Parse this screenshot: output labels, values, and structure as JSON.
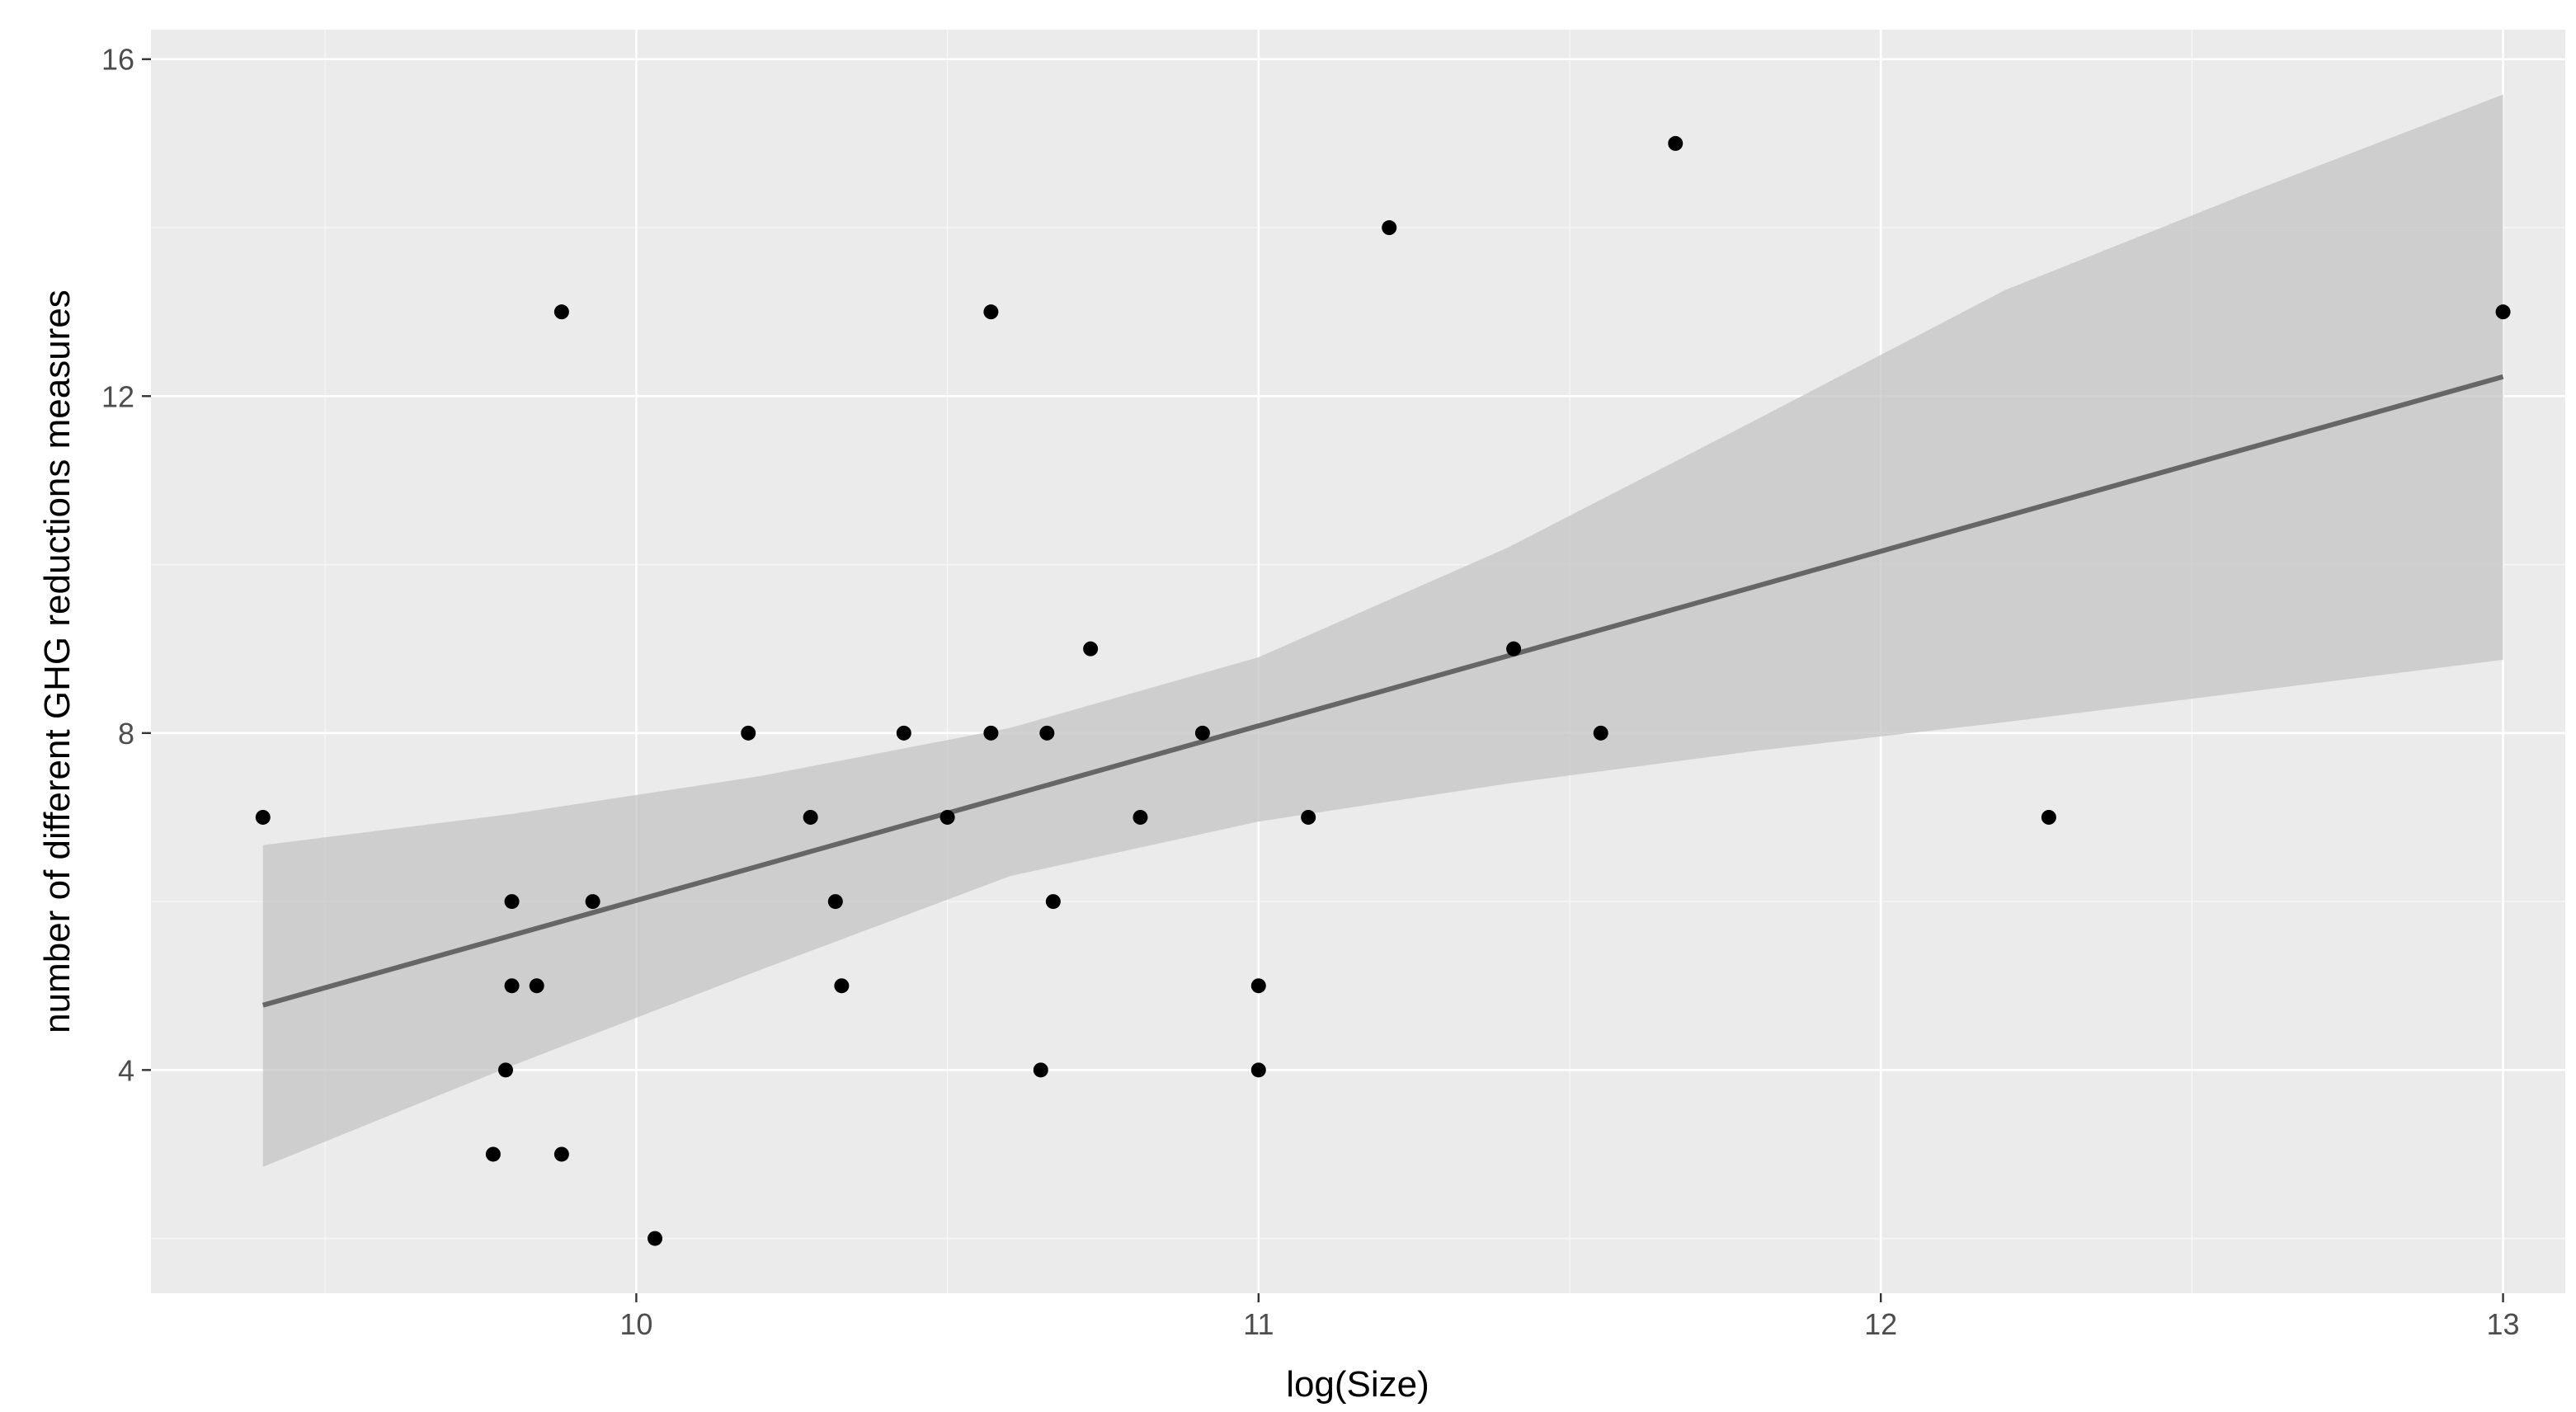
{
  "chart_data": {
    "type": "scatter",
    "xlabel": "log(Size)",
    "ylabel": "number of  different GHG reductions measures",
    "xlim": [
      9.22,
      13.1
    ],
    "ylim": [
      1.35,
      16.35
    ],
    "x_ticks": [
      10,
      11,
      12,
      13
    ],
    "x_tick_labels": [
      "10",
      "11",
      "12",
      "13"
    ],
    "y_ticks": [
      4,
      8,
      12,
      16
    ],
    "y_tick_labels": [
      "4",
      "8",
      "12",
      "16"
    ],
    "x_minor": [
      9.5,
      10.5,
      11.5,
      12.5
    ],
    "y_minor": [
      2,
      6,
      10,
      14
    ],
    "grid": true,
    "points": [
      {
        "x": 9.4,
        "y": 7
      },
      {
        "x": 9.77,
        "y": 3
      },
      {
        "x": 9.79,
        "y": 4
      },
      {
        "x": 9.8,
        "y": 6
      },
      {
        "x": 9.8,
        "y": 5
      },
      {
        "x": 9.84,
        "y": 5
      },
      {
        "x": 9.88,
        "y": 3
      },
      {
        "x": 9.88,
        "y": 13
      },
      {
        "x": 9.93,
        "y": 6
      },
      {
        "x": 10.03,
        "y": 2
      },
      {
        "x": 10.18,
        "y": 8
      },
      {
        "x": 10.28,
        "y": 7
      },
      {
        "x": 10.32,
        "y": 6
      },
      {
        "x": 10.33,
        "y": 5
      },
      {
        "x": 10.43,
        "y": 8
      },
      {
        "x": 10.5,
        "y": 7
      },
      {
        "x": 10.57,
        "y": 13
      },
      {
        "x": 10.57,
        "y": 8
      },
      {
        "x": 10.65,
        "y": 4
      },
      {
        "x": 10.66,
        "y": 8
      },
      {
        "x": 10.67,
        "y": 6
      },
      {
        "x": 10.73,
        "y": 9
      },
      {
        "x": 10.81,
        "y": 7
      },
      {
        "x": 10.91,
        "y": 8
      },
      {
        "x": 11.0,
        "y": 5
      },
      {
        "x": 11.0,
        "y": 4
      },
      {
        "x": 11.08,
        "y": 7
      },
      {
        "x": 11.21,
        "y": 14
      },
      {
        "x": 11.41,
        "y": 9
      },
      {
        "x": 11.55,
        "y": 8
      },
      {
        "x": 11.67,
        "y": 15
      },
      {
        "x": 12.27,
        "y": 7
      },
      {
        "x": 13.0,
        "y": 13
      }
    ],
    "fit_line": {
      "x": [
        9.4,
        13.0
      ],
      "y": [
        4.77,
        12.23
      ]
    },
    "confidence_band": {
      "x": [
        9.4,
        9.8,
        10.2,
        10.6,
        11.0,
        11.4,
        11.8,
        12.2,
        12.6,
        13.0
      ],
      "upper": [
        6.67,
        7.04,
        7.49,
        8.06,
        8.9,
        10.2,
        11.72,
        13.26,
        14.44,
        15.58
      ],
      "lower": [
        2.85,
        4.05,
        5.19,
        6.3,
        6.95,
        7.4,
        7.79,
        8.13,
        8.5,
        8.87
      ]
    }
  }
}
